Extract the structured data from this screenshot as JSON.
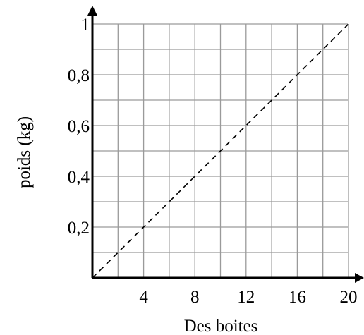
{
  "chart_data": {
    "type": "line",
    "xlabel": "Des boites",
    "ylabel": "poids (kg)",
    "xlim": [
      0,
      20
    ],
    "ylim": [
      0,
      1
    ],
    "x_gridlines_step": 2,
    "y_gridlines_step": 0.1,
    "grid": true,
    "x_ticks": [
      {
        "value": 4,
        "label": "4"
      },
      {
        "value": 8,
        "label": "8"
      },
      {
        "value": 12,
        "label": "12"
      },
      {
        "value": 16,
        "label": "16"
      },
      {
        "value": 20,
        "label": "20"
      }
    ],
    "y_ticks": [
      {
        "value": 0.2,
        "label": "0,2"
      },
      {
        "value": 0.4,
        "label": "0,4"
      },
      {
        "value": 0.6,
        "label": "0,6"
      },
      {
        "value": 0.8,
        "label": "0,8"
      },
      {
        "value": 1,
        "label": "1"
      }
    ],
    "series": [
      {
        "x": [
          0,
          20
        ],
        "y": [
          0,
          1
        ],
        "style": "dashed"
      }
    ],
    "colors": {
      "grid": "#9a9a9a",
      "axis": "#000000",
      "line": "#000000"
    }
  }
}
